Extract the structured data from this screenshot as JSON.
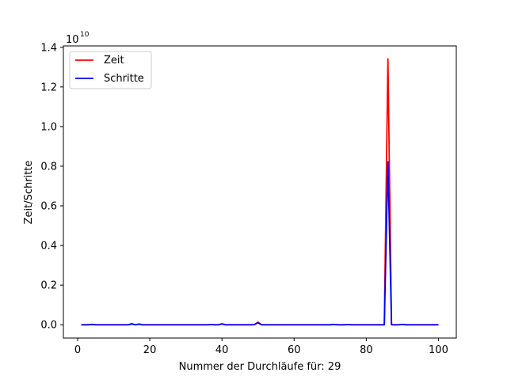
{
  "chart_data": {
    "type": "line",
    "title": "",
    "xlabel": "Nummer der Durchläufe für: 29",
    "ylabel": "Zeit/Schritte",
    "offset_label": "10",
    "offset_exponent": "10",
    "xlim": [
      -3.95,
      104.95
    ],
    "ylim": [
      -0.067,
      1.407
    ],
    "xticks": [
      0,
      20,
      40,
      60,
      80,
      100
    ],
    "xtick_labels": [
      "0",
      "20",
      "40",
      "60",
      "80",
      "100"
    ],
    "yticks": [
      0.0,
      0.2,
      0.4,
      0.6,
      0.8,
      1.0,
      1.2,
      1.4
    ],
    "ytick_labels": [
      "0.0",
      "0.2",
      "0.4",
      "0.6",
      "0.8",
      "1.0",
      "1.2",
      "1.4"
    ],
    "y_scale_note": "values in units of 1e10",
    "grid": false,
    "legend_position": "top-left",
    "x": [
      1,
      2,
      3,
      4,
      5,
      6,
      7,
      8,
      9,
      10,
      11,
      12,
      13,
      14,
      15,
      16,
      17,
      18,
      19,
      20,
      21,
      22,
      23,
      24,
      25,
      26,
      27,
      28,
      29,
      30,
      31,
      32,
      33,
      34,
      35,
      36,
      37,
      38,
      39,
      40,
      41,
      42,
      43,
      44,
      45,
      46,
      47,
      48,
      49,
      50,
      51,
      52,
      53,
      54,
      55,
      56,
      57,
      58,
      59,
      60,
      61,
      62,
      63,
      64,
      65,
      66,
      67,
      68,
      69,
      70,
      71,
      72,
      73,
      74,
      75,
      76,
      77,
      78,
      79,
      80,
      81,
      82,
      83,
      84,
      85,
      86,
      87,
      88,
      89,
      90,
      91,
      92,
      93,
      94,
      95,
      96,
      97,
      98,
      99,
      100
    ],
    "series": [
      {
        "name": "Zeit",
        "color": "#ff0000",
        "values": [
          0,
          0,
          0,
          0.002,
          0,
          0,
          0,
          0,
          0,
          0,
          0,
          0,
          0,
          0,
          0.006,
          0,
          0.004,
          0,
          0,
          0,
          0,
          0,
          0,
          0,
          0,
          0,
          0,
          0,
          0,
          0,
          0,
          0,
          0,
          0,
          0,
          0,
          0.001,
          0,
          0,
          0.005,
          0,
          0,
          0,
          0,
          0,
          0,
          0,
          0,
          0.001,
          0.013,
          0,
          0,
          0,
          0,
          0,
          0,
          0,
          0,
          0,
          0,
          0,
          0,
          0,
          0,
          0,
          0,
          0,
          0,
          0,
          0,
          0.002,
          0,
          0,
          0,
          0.001,
          0,
          0,
          0,
          0,
          0,
          0,
          0,
          0,
          0,
          0,
          1.342,
          0,
          0,
          0,
          0.002,
          0,
          0,
          0,
          0,
          0,
          0,
          0,
          0,
          0,
          0
        ]
      },
      {
        "name": "Schritte",
        "color": "#0000ff",
        "values": [
          0,
          0,
          0,
          0.002,
          0,
          0,
          0,
          0,
          0,
          0,
          0,
          0,
          0,
          0,
          0.004,
          0,
          0.003,
          0,
          0,
          0,
          0,
          0,
          0,
          0,
          0,
          0,
          0,
          0,
          0,
          0,
          0,
          0,
          0,
          0,
          0,
          0,
          0.001,
          0,
          0,
          0.004,
          0,
          0,
          0,
          0,
          0,
          0,
          0,
          0,
          0.001,
          0.01,
          0,
          0,
          0,
          0,
          0,
          0,
          0,
          0,
          0,
          0,
          0,
          0,
          0,
          0,
          0,
          0,
          0,
          0,
          0,
          0,
          0.002,
          0,
          0,
          0,
          0.001,
          0,
          0,
          0,
          0,
          0,
          0,
          0,
          0,
          0,
          0,
          0.822,
          0,
          0,
          0,
          0.002,
          0,
          0,
          0,
          0,
          0,
          0,
          0,
          0,
          0,
          0
        ]
      }
    ]
  }
}
